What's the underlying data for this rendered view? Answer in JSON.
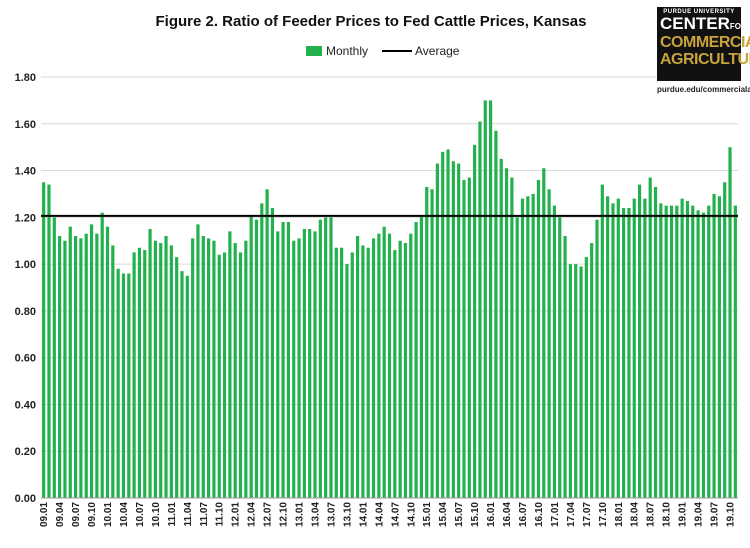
{
  "logo": {
    "top_text": "PURDUE UNIVERSITY",
    "line1": "CENTER",
    "line1_suffix": "FOR",
    "line2": "COMMERCIAL",
    "line3": "AGRICULTURE",
    "url": "purdue.edu/commercialag"
  },
  "colors": {
    "bar": "#22b14c",
    "average": "#000000",
    "axis": "#999999"
  },
  "chart_data": {
    "type": "bar",
    "title": "Figure 2. Ratio of Feeder Prices to Fed Cattle Prices, Kansas",
    "xlabel": "",
    "ylabel": "",
    "ylim": [
      0,
      1.8
    ],
    "yticks": [
      "0.00",
      "0.20",
      "0.40",
      "0.60",
      "0.80",
      "1.00",
      "1.20",
      "1.40",
      "1.60",
      "1.80"
    ],
    "legend": {
      "position": "top",
      "entries": [
        "Monthly",
        "Average"
      ]
    },
    "xtick_labels": [
      "09.01",
      "09.04",
      "09.07",
      "09.10",
      "10.01",
      "10.04",
      "10.07",
      "10.10",
      "11.01",
      "11.04",
      "11.07",
      "11.10",
      "12.01",
      "12.04",
      "12.07",
      "12.10",
      "13.01",
      "13.04",
      "13.07",
      "13.10",
      "14.01",
      "14.04",
      "14.07",
      "14.10",
      "15.01",
      "15.04",
      "15.07",
      "15.10",
      "16.01",
      "16.04",
      "16.07",
      "16.10",
      "17.01",
      "17.04",
      "17.07",
      "17.10",
      "18.01",
      "18.04",
      "18.07",
      "18.10",
      "19.01",
      "19.04",
      "19.07",
      "19.10"
    ],
    "series": [
      {
        "name": "Monthly",
        "values": [
          1.35,
          1.34,
          1.2,
          1.12,
          1.1,
          1.16,
          1.12,
          1.11,
          1.13,
          1.17,
          1.13,
          1.22,
          1.16,
          1.08,
          0.98,
          0.96,
          0.96,
          1.05,
          1.07,
          1.06,
          1.15,
          1.1,
          1.09,
          1.12,
          1.08,
          1.03,
          0.97,
          0.95,
          1.11,
          1.17,
          1.12,
          1.11,
          1.1,
          1.04,
          1.05,
          1.14,
          1.09,
          1.05,
          1.1,
          1.21,
          1.19,
          1.26,
          1.32,
          1.24,
          1.14,
          1.18,
          1.18,
          1.1,
          1.11,
          1.15,
          1.15,
          1.14,
          1.19,
          1.2,
          1.2,
          1.07,
          1.07,
          1.0,
          1.05,
          1.12,
          1.08,
          1.07,
          1.11,
          1.13,
          1.16,
          1.13,
          1.06,
          1.1,
          1.09,
          1.13,
          1.18,
          1.21,
          1.33,
          1.32,
          1.43,
          1.48,
          1.49,
          1.44,
          1.43,
          1.36,
          1.37,
          1.51,
          1.61,
          1.7,
          1.7,
          1.57,
          1.45,
          1.41,
          1.37,
          1.2,
          1.28,
          1.29,
          1.3,
          1.36,
          1.41,
          1.32,
          1.25,
          1.2,
          1.12,
          1.0,
          1.0,
          0.99,
          1.03,
          1.09,
          1.19,
          1.34,
          1.29,
          1.26,
          1.28,
          1.24,
          1.24,
          1.28,
          1.34,
          1.28,
          1.37,
          1.33,
          1.26,
          1.25,
          1.25,
          1.25,
          1.28,
          1.27,
          1.25,
          1.23,
          1.22,
          1.25,
          1.3,
          1.29,
          1.35,
          1.5,
          1.25
        ]
      },
      {
        "name": "Average",
        "value": 1.206
      }
    ]
  }
}
